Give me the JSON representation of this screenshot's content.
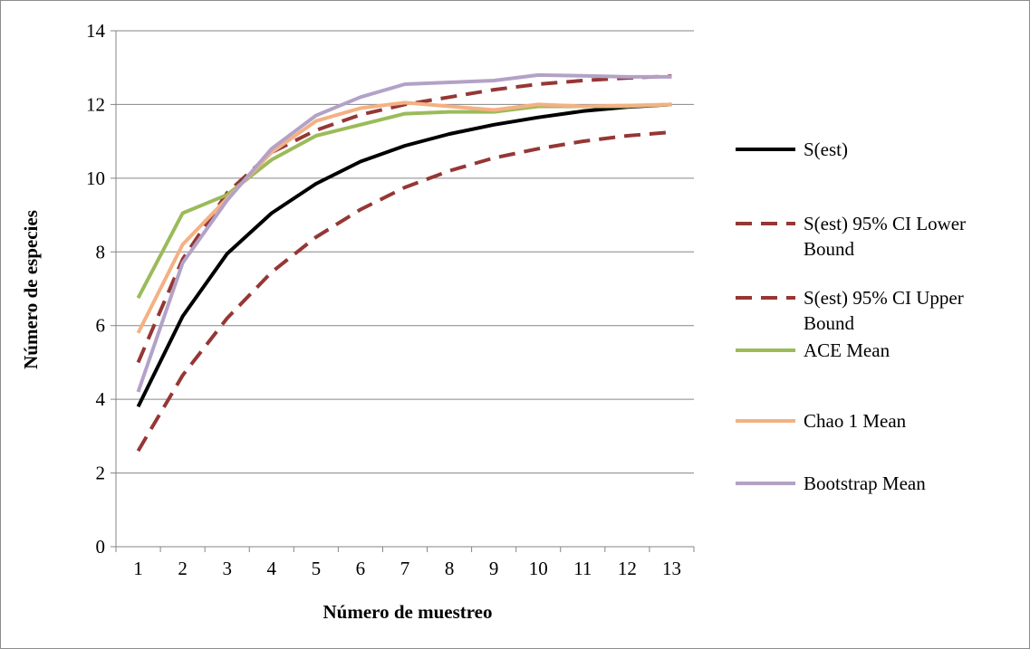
{
  "chart_data": {
    "type": "line",
    "title": "",
    "xlabel": "Número de muestreo",
    "ylabel": "Número de especies",
    "categories": [
      "1",
      "2",
      "3",
      "4",
      "5",
      "6",
      "7",
      "8",
      "9",
      "10",
      "11",
      "12",
      "13"
    ],
    "yticks": [
      "0",
      "2",
      "4",
      "6",
      "8",
      "10",
      "12",
      "14"
    ],
    "ylim": [
      0,
      14
    ],
    "grid": "horizontal",
    "legend_position": "right",
    "series": [
      {
        "name": "S(est)",
        "color": "#000000",
        "dash": "solid",
        "values": [
          3.8,
          6.25,
          7.95,
          9.05,
          9.85,
          10.45,
          10.88,
          11.2,
          11.45,
          11.65,
          11.82,
          11.93,
          12.0
        ]
      },
      {
        "name": "S(est) 95% CI Lower Bound",
        "color": "#953735",
        "dash": "dashed",
        "values": [
          2.6,
          4.65,
          6.2,
          7.45,
          8.4,
          9.15,
          9.75,
          10.2,
          10.55,
          10.8,
          11.0,
          11.15,
          11.25
        ]
      },
      {
        "name": "S(est) 95% CI Upper Bound",
        "color": "#953735",
        "dash": "dashed",
        "values": [
          5.0,
          7.8,
          9.6,
          10.7,
          11.3,
          11.72,
          12.0,
          12.2,
          12.4,
          12.55,
          12.65,
          12.72,
          12.77
        ]
      },
      {
        "name": "ACE Mean",
        "color": "#9bbb59",
        "dash": "solid",
        "values": [
          6.75,
          9.05,
          9.55,
          10.5,
          11.15,
          11.45,
          11.75,
          11.8,
          11.8,
          11.95,
          11.95,
          11.95,
          12.0
        ]
      },
      {
        "name": "Chao 1 Mean",
        "color": "#f4b183",
        "dash": "solid",
        "values": [
          5.8,
          8.2,
          9.45,
          10.7,
          11.55,
          11.9,
          12.05,
          11.95,
          11.85,
          12.0,
          11.95,
          11.97,
          12.0
        ]
      },
      {
        "name": "Bootstrap Mean",
        "color": "#b3a2c7",
        "dash": "solid",
        "values": [
          4.2,
          7.7,
          9.4,
          10.8,
          11.7,
          12.2,
          12.55,
          12.6,
          12.65,
          12.8,
          12.78,
          12.75,
          12.75
        ]
      }
    ],
    "legend": [
      {
        "lines": [
          "S(est)"
        ],
        "series": 0
      },
      {
        "lines": [
          "S(est) 95% CI Lower",
          "Bound"
        ],
        "series": 1
      },
      {
        "lines": [
          "S(est) 95% CI Upper",
          "Bound"
        ],
        "series": 2
      },
      {
        "lines": [
          "ACE Mean"
        ],
        "series": 3
      },
      {
        "lines": [
          "Chao 1 Mean"
        ],
        "series": 4
      },
      {
        "lines": [
          "Bootstrap Mean"
        ],
        "series": 5
      }
    ]
  }
}
